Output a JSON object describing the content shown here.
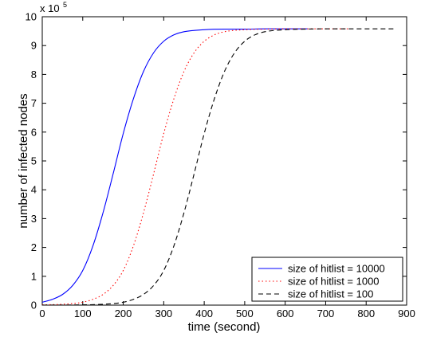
{
  "chart_data": {
    "type": "line",
    "title": "",
    "xlabel": "time (second)",
    "ylabel": "number of infected nodes",
    "y_multiplier_label": "x 10",
    "y_multiplier_exponent": "5",
    "xlim": [
      0,
      900
    ],
    "ylim": [
      0,
      10
    ],
    "xticks": [
      0,
      100,
      200,
      300,
      400,
      500,
      600,
      700,
      800,
      900
    ],
    "yticks": [
      0,
      1,
      2,
      3,
      4,
      5,
      6,
      7,
      8,
      9,
      10
    ],
    "grid": false,
    "legend_position": "bottom-right",
    "series": [
      {
        "name": "size of hitlist = 10000",
        "color": "#0000ff",
        "dash": "solid",
        "x": [
          0,
          25,
          50,
          75,
          100,
          125,
          150,
          175,
          200,
          225,
          250,
          275,
          300,
          325,
          350,
          400,
          450,
          500,
          550,
          600,
          655
        ],
        "y": [
          0.1,
          0.2,
          0.37,
          0.68,
          1.2,
          2.05,
          3.2,
          4.55,
          5.95,
          7.15,
          8.1,
          8.75,
          9.15,
          9.37,
          9.48,
          9.55,
          9.57,
          9.57,
          9.58,
          9.58,
          9.58
        ]
      },
      {
        "name": "size of hitlist = 1000",
        "color": "#ff0000",
        "dash": "dotted",
        "x": [
          0,
          50,
          100,
          125,
          150,
          175,
          200,
          225,
          250,
          275,
          300,
          325,
          350,
          375,
          400,
          425,
          450,
          500,
          550,
          600,
          700,
          760
        ],
        "y": [
          0.01,
          0.03,
          0.1,
          0.2,
          0.37,
          0.68,
          1.2,
          2.05,
          3.2,
          4.55,
          5.95,
          7.15,
          8.1,
          8.75,
          9.15,
          9.37,
          9.48,
          9.55,
          9.57,
          9.58,
          9.58,
          9.58
        ]
      },
      {
        "name": "size of hitlist = 100",
        "color": "#000000",
        "dash": "dashed",
        "x": [
          0,
          100,
          150,
          200,
          225,
          250,
          275,
          300,
          325,
          350,
          375,
          400,
          425,
          450,
          475,
          500,
          525,
          550,
          600,
          650,
          700,
          800,
          870
        ],
        "y": [
          0.0,
          0.01,
          0.03,
          0.1,
          0.2,
          0.37,
          0.68,
          1.2,
          2.05,
          3.2,
          4.55,
          5.95,
          7.15,
          8.1,
          8.75,
          9.15,
          9.37,
          9.48,
          9.55,
          9.57,
          9.58,
          9.58,
          9.58
        ]
      }
    ]
  }
}
